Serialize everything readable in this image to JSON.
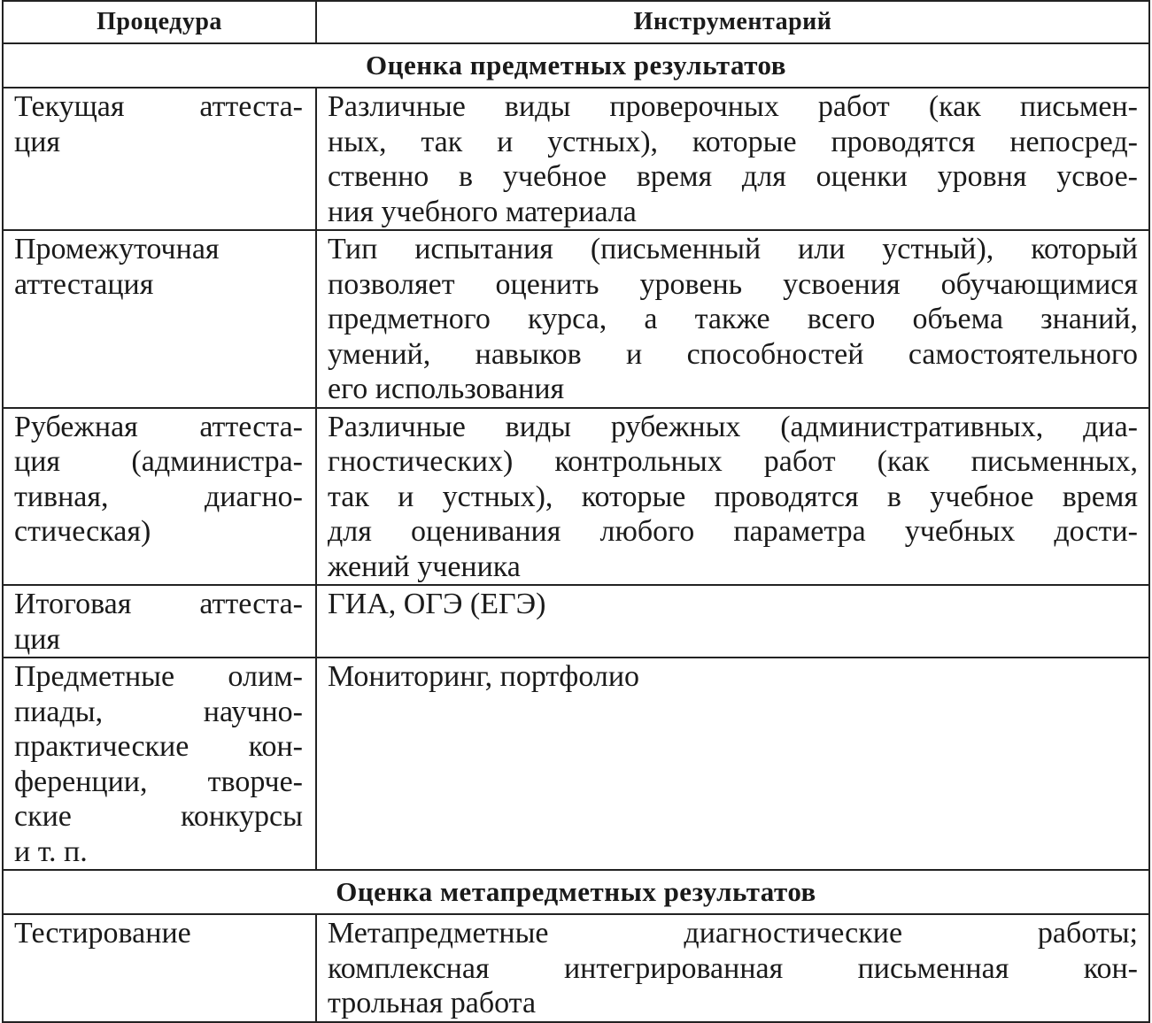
{
  "table": {
    "header": [
      "Процедура",
      "Инструментарий"
    ],
    "sections": [
      {
        "title": "Оценка предметных результатов",
        "rows": [
          [
            [
              "Текущая аттеста-",
              "ция"
            ],
            [
              "Различные виды проверочных работ (как письмен-",
              "ных, так и устных), которые проводятся непосред-",
              "ственно в учебное время для оценки уровня усвое-",
              "ния учебного материала"
            ]
          ],
          [
            [
              "Промежуточная",
              "аттестация"
            ],
            [
              "Тип испытания (письменный или устный), который",
              "позволяет оценить уровень усвоения обучающимися",
              "предметного курса, а также всего объема знаний,",
              "умений, навыков и способностей самостоятельного",
              "его использования"
            ]
          ],
          [
            [
              "Рубежная аттеста-",
              "ция (администра-",
              "тивная, диагно-",
              "стическая)"
            ],
            [
              "Различные виды рубежных (административных, диа-",
              "гностических) контрольных работ (как письменных,",
              "так и устных), которые проводятся в учебное время",
              "для оценивания любого параметра учебных дости-",
              "жений ученика"
            ]
          ],
          [
            [
              "Итоговая аттеста-",
              "ция"
            ],
            [
              "ГИА, ОГЭ (ЕГЭ)"
            ]
          ],
          [
            [
              "Предметные олим-",
              "пиады, научно-",
              "практические кон-",
              "ференции, творче-",
              "ские конкурсы",
              "и т. п."
            ],
            [
              "Мониторинг, портфолио"
            ]
          ]
        ]
      },
      {
        "title": "Оценка метапредметных результатов",
        "rows": [
          [
            [
              "Тестирование"
            ],
            [
              "Метапредметные диагностические работы;",
              "комплексная интегрированная письменная кон-",
              "трольная работа"
            ]
          ]
        ]
      }
    ]
  }
}
